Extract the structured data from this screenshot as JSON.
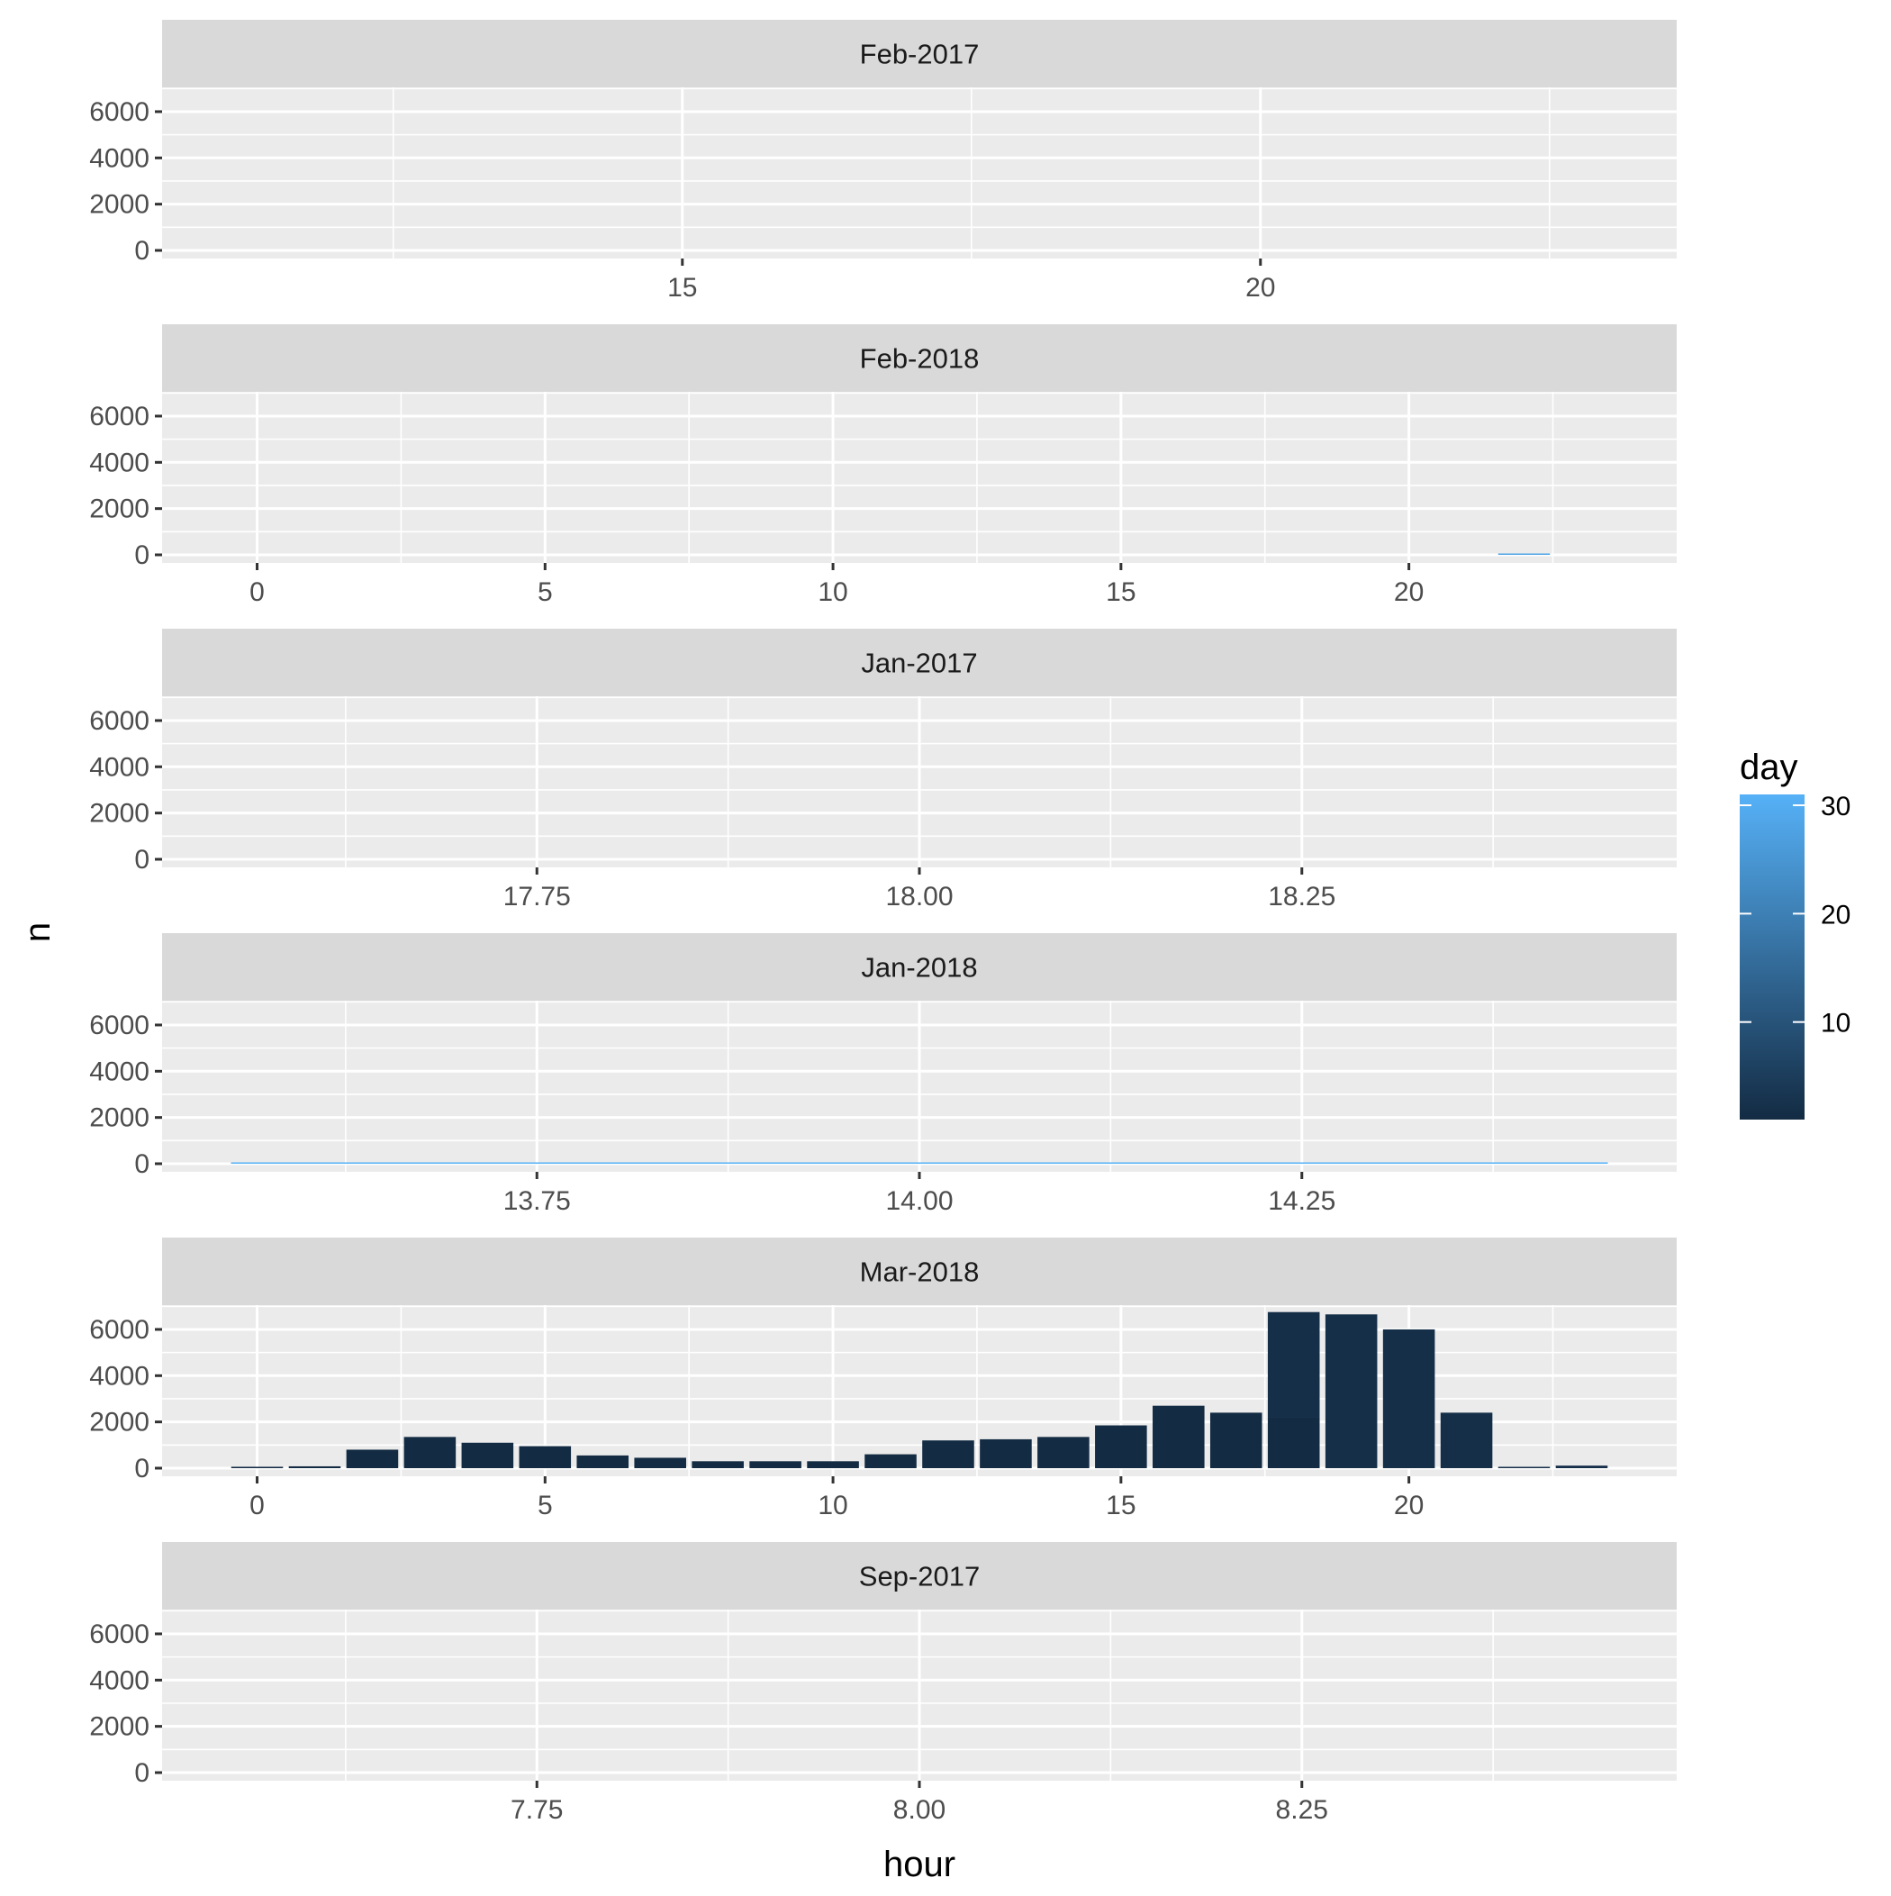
{
  "chart_data": {
    "type": "bar",
    "faceted": true,
    "xlabel": "hour",
    "ylabel": "n",
    "y_ticks": [
      0,
      2000,
      4000,
      6000
    ],
    "ylim": [
      -350,
      7050
    ],
    "legend": {
      "title": "day",
      "position": "right",
      "type": "colorbar",
      "range": [
        1,
        31
      ],
      "ticks": [
        10,
        20,
        30
      ],
      "low_color": "#132b43",
      "high_color": "#56b1f7"
    },
    "panels": [
      {
        "label": "Feb-2017",
        "xlim": [
          10.5,
          23.6
        ],
        "x_ticks": [
          15,
          20
        ],
        "x_tick_labels": [
          "15",
          "20"
        ],
        "bars": []
      },
      {
        "label": "Feb-2018",
        "xlim": [
          -1.65,
          24.65
        ],
        "x_ticks": [
          0,
          5,
          10,
          15,
          20
        ],
        "x_tick_labels": [
          "0",
          "5",
          "10",
          "15",
          "20"
        ],
        "bars": [
          {
            "x": 22,
            "n": 10,
            "day": 28
          }
        ]
      },
      {
        "label": "Jan-2017",
        "xlim": [
          17.505,
          18.495
        ],
        "x_ticks": [
          17.75,
          18.0,
          18.25
        ],
        "x_tick_labels": [
          "17.75",
          "18.00",
          "18.25"
        ],
        "bars": []
      },
      {
        "label": "Jan-2018",
        "xlim": [
          13.505,
          14.495
        ],
        "x_ticks": [
          13.75,
          14.0,
          14.25
        ],
        "x_tick_labels": [
          "13.75",
          "14.00",
          "14.25"
        ],
        "bars": [
          {
            "x": 14,
            "n": 8,
            "day": 31
          }
        ]
      },
      {
        "label": "Mar-2018",
        "xlim": [
          -1.65,
          24.65
        ],
        "x_ticks": [
          0,
          5,
          10,
          15,
          20
        ],
        "x_tick_labels": [
          "0",
          "5",
          "10",
          "15",
          "20"
        ],
        "bars": [
          {
            "x": 0,
            "n": 60,
            "day": 1
          },
          {
            "x": 1,
            "n": 80,
            "day": 1
          },
          {
            "x": 2,
            "n": 800,
            "day": 1
          },
          {
            "x": 3,
            "n": 1350,
            "day": 1
          },
          {
            "x": 4,
            "n": 1100,
            "day": 1
          },
          {
            "x": 5,
            "n": 950,
            "day": 1
          },
          {
            "x": 6,
            "n": 550,
            "day": 1
          },
          {
            "x": 7,
            "n": 450,
            "day": 1
          },
          {
            "x": 8,
            "n": 300,
            "day": 1
          },
          {
            "x": 9,
            "n": 300,
            "day": 1
          },
          {
            "x": 10,
            "n": 300,
            "day": 1
          },
          {
            "x": 11,
            "n": 600,
            "day": 1
          },
          {
            "x": 12,
            "n": 1200,
            "day": 1
          },
          {
            "x": 13,
            "n": 1250,
            "day": 1
          },
          {
            "x": 14,
            "n": 1350,
            "day": 1
          },
          {
            "x": 15,
            "n": 1850,
            "day": 1
          },
          {
            "x": 16,
            "n": 2700,
            "day": 1
          },
          {
            "x": 17,
            "n": 2400,
            "day": 1
          },
          {
            "x": 18,
            "n": 2200,
            "day": 1
          },
          {
            "x": 18,
            "n": 4550,
            "day": 2
          },
          {
            "x": 19,
            "n": 6650,
            "day": 2
          },
          {
            "x": 20,
            "n": 6000,
            "day": 2
          },
          {
            "x": 21,
            "n": 2400,
            "day": 2
          },
          {
            "x": 22,
            "n": 30,
            "day": 2
          },
          {
            "x": 23,
            "n": 110,
            "day": 2
          }
        ]
      },
      {
        "label": "Sep-2017",
        "xlim": [
          7.505,
          8.495
        ],
        "x_ticks": [
          7.75,
          8.0,
          8.25
        ],
        "x_tick_labels": [
          "7.75",
          "8.00",
          "8.25"
        ],
        "bars": []
      }
    ]
  }
}
